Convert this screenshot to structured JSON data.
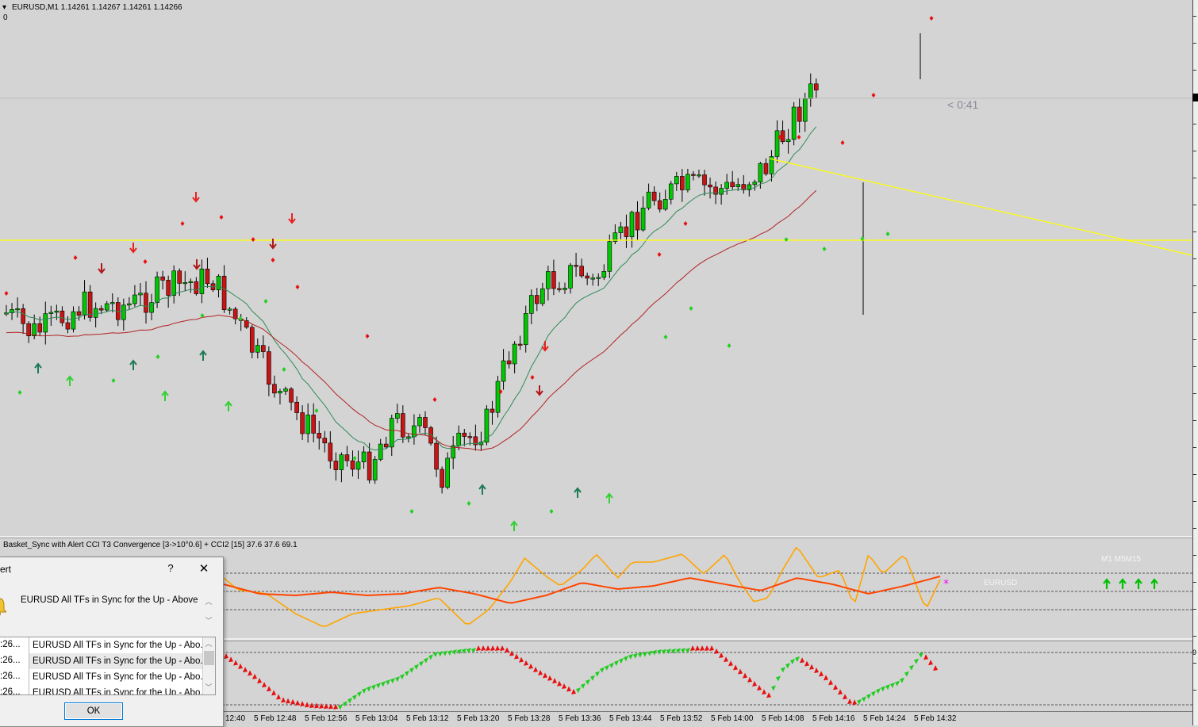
{
  "main_chart": {
    "header": "EURUSD,M1  1.14261 1.14267 1.14261 1.14266",
    "sub_value": "0",
    "countdown": "< 0:41"
  },
  "indicator1": {
    "header": "Basket_Sync with Alert  CCI T3 Convergence [3->10°0.6] + CCI2 [15] 37.6 37.6 69.1",
    "symbol_label": "EURUSD",
    "tf_labels": "M1  M5M15",
    "arrow_count": 4,
    "colors": {
      "fast": "#ffa500",
      "slow": "#ff4500",
      "arrows": "#00c000"
    }
  },
  "indicator2": {
    "right_value": "9"
  },
  "time_axis": {
    "labels": [
      "12:40",
      "5 Feb 12:48",
      "5 Feb 12:56",
      "5 Feb 13:04",
      "5 Feb 13:12",
      "5 Feb 13:20",
      "5 Feb 13:28",
      "5 Feb 13:36",
      "5 Feb 13:44",
      "5 Feb 13:52",
      "5 Feb 14:00",
      "5 Feb 14:08",
      "5 Feb 14:16",
      "5 Feb 14:24",
      "5 Feb 14:32"
    ]
  },
  "alert": {
    "title": "ert",
    "help": "?",
    "close": "✕",
    "message": "EURUSD All TFs in Sync for the Up - Above the",
    "rows": [
      {
        "time": ":26...",
        "msg": "EURUSD All TFs in Sync for the Up - Abo..."
      },
      {
        "time": ":26...",
        "msg": "EURUSD All TFs in Sync for the Up - Abo..."
      },
      {
        "time": ":26...",
        "msg": "EURUSD All TFs in Sync for the Up - Abo..."
      },
      {
        "time": ":26...",
        "msg": "EURUSD All TFs in Sync for the Up - Abo..."
      }
    ],
    "ok_label": "OK"
  },
  "colors": {
    "background": "#d4d4d4",
    "bull": "#00c800",
    "bear": "#c81414",
    "hline": "#ffff00",
    "ma_fast": "#2e8b57",
    "ma_slow": "#b22222"
  }
}
